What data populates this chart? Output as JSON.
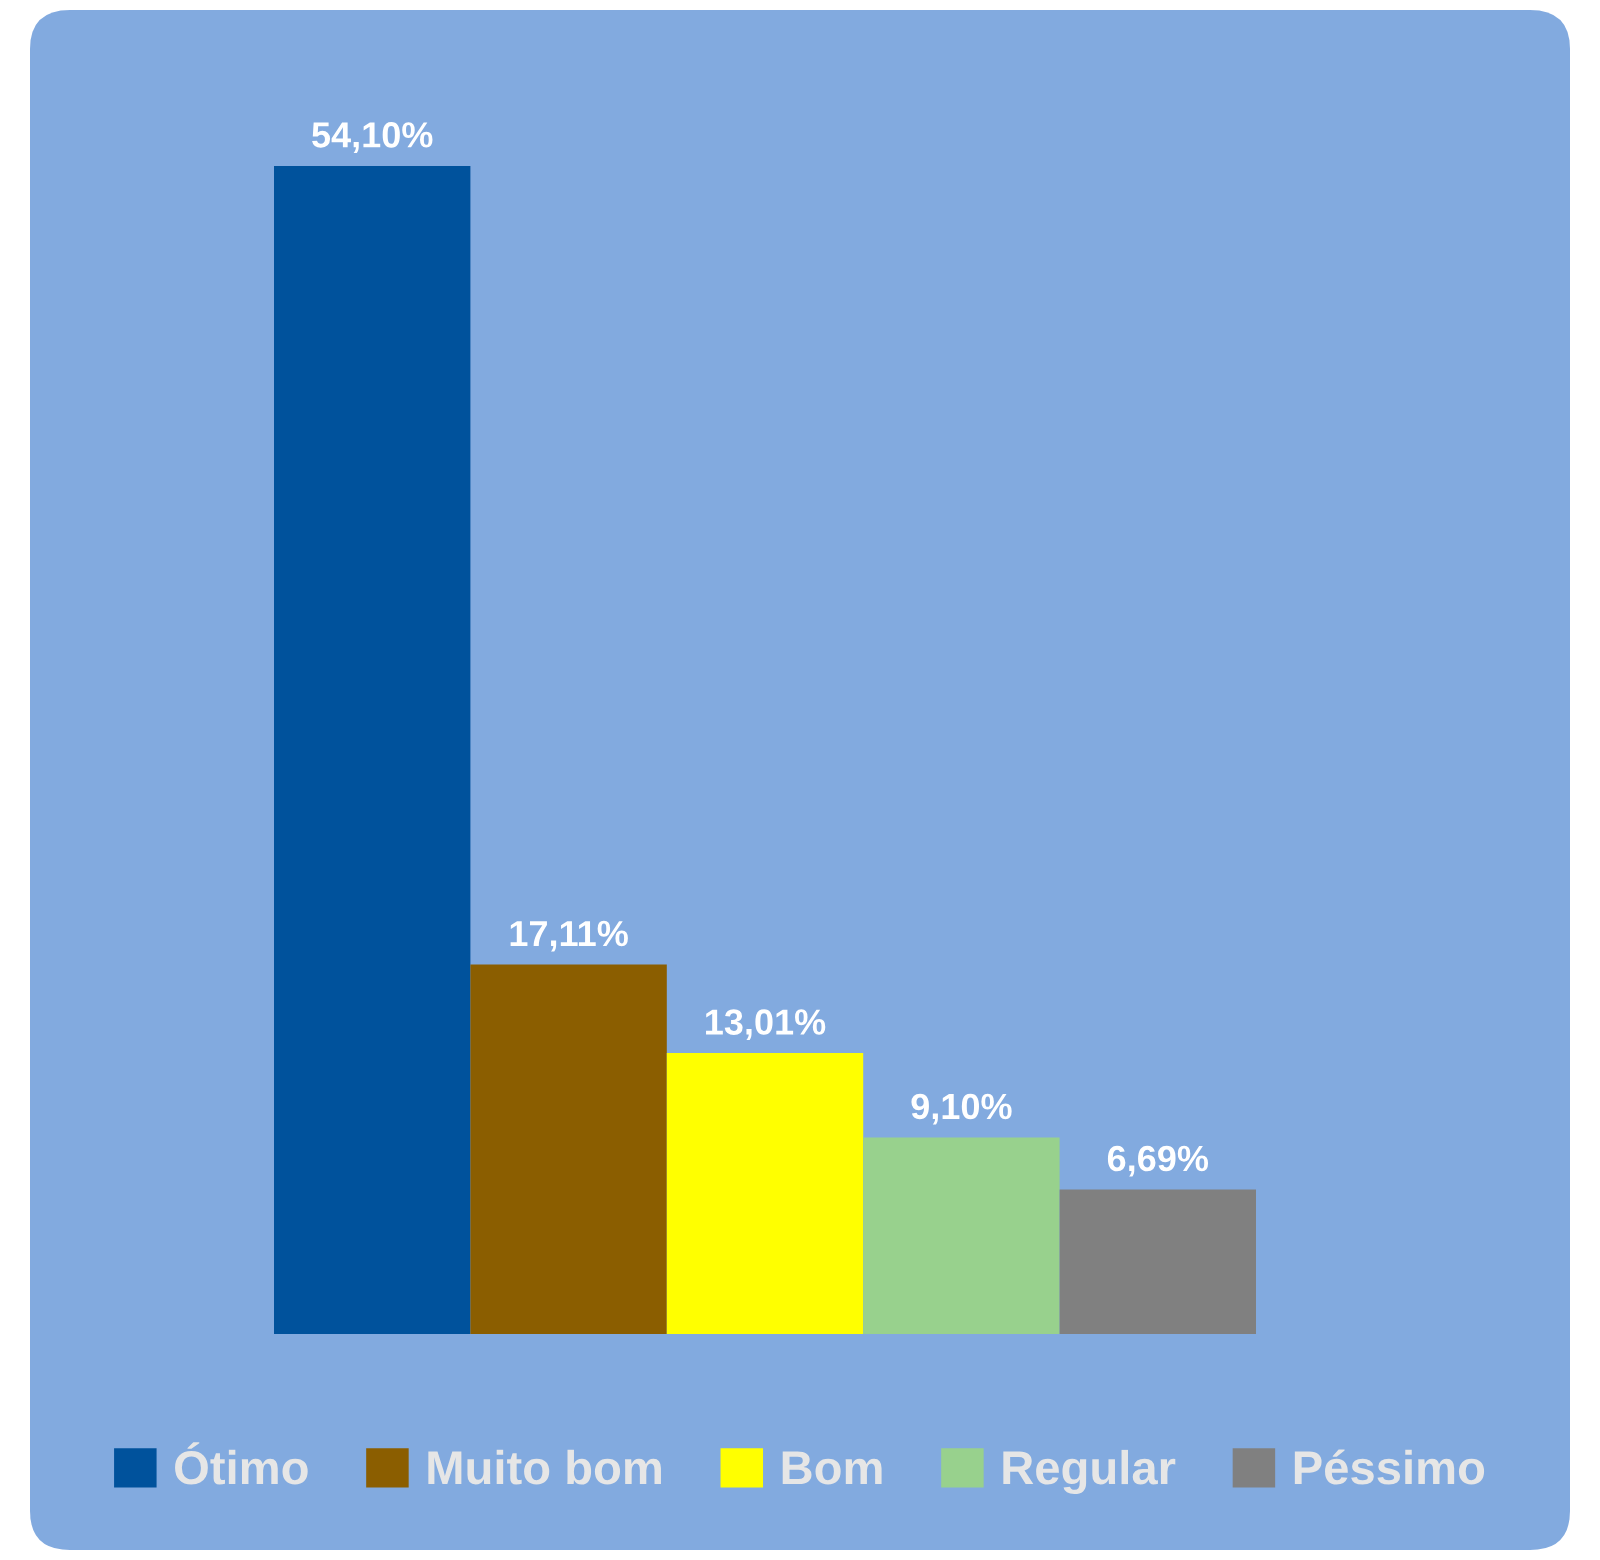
{
  "chart_data": {
    "type": "bar",
    "categories": [
      null
    ],
    "series": [
      {
        "name": "Ótimo",
        "color": "#00529c",
        "values": [
          54.1
        ],
        "value_labels": [
          "54,10%"
        ]
      },
      {
        "name": "Muito bom",
        "color": "#8b5e00",
        "values": [
          17.11
        ],
        "value_labels": [
          "17,11%"
        ]
      },
      {
        "name": "Bom",
        "color": "#ffff00",
        "values": [
          13.01
        ],
        "value_labels": [
          "13,01%"
        ]
      },
      {
        "name": "Regular",
        "color": "#98d18d",
        "values": [
          9.1
        ],
        "value_labels": [
          "9,10%"
        ]
      },
      {
        "name": "Péssimo",
        "color": "#808080",
        "values": [
          6.69
        ],
        "value_labels": [
          "6,69%"
        ]
      }
    ],
    "legend": "bottom"
  }
}
